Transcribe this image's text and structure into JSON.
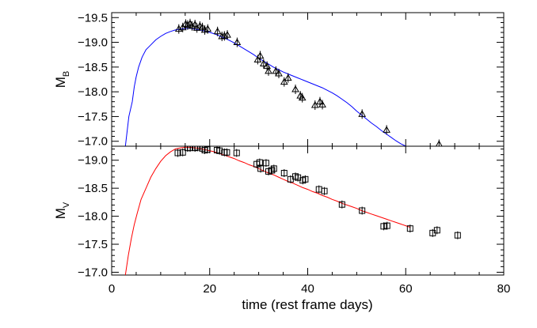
{
  "chart_data": [
    {
      "type": "line",
      "ylabel_main": "M",
      "ylabel_sub": "B",
      "xlim": [
        0,
        80
      ],
      "ylim": [
        -16.9,
        -19.6
      ],
      "y_inverted": true,
      "xticks": [
        0,
        20,
        40,
        60,
        80
      ],
      "yticks": [
        -17.0,
        -17.5,
        -18.0,
        -18.5,
        -19.0,
        -19.5
      ],
      "ytick_labels": [
        "−17.0",
        "−17.5",
        "−18.0",
        "−18.5",
        "−19.0",
        "−19.5"
      ],
      "grid": false,
      "series": [
        {
          "kind": "model-line",
          "color": "#0000ff",
          "x": [
            2.8,
            3.5,
            4.2,
            4.6,
            5.0,
            5.5,
            6.2,
            7.0,
            8.0,
            9.0,
            10.0,
            11.0,
            12.0,
            13.0,
            14.0,
            15.0,
            16.0,
            17.0,
            18.0,
            19.0,
            20.0,
            21.0,
            22.0,
            23.0,
            24.0,
            25.0,
            26.0,
            27.0,
            28.0,
            29.0,
            30.0,
            31.0,
            32.0,
            33.0,
            34.0,
            35.0,
            36.0,
            37.0,
            38.0,
            39.0,
            40.0,
            41.0,
            42.0,
            43.0,
            44.0,
            45.0,
            46.0,
            47.0,
            48.0,
            49.0,
            50.0,
            51.0,
            52.0,
            53.0,
            54.0,
            55.0,
            56.0,
            57.0,
            58.0,
            59.0,
            60.0,
            61.0,
            62.0
          ],
          "y": [
            -16.9,
            -17.5,
            -17.8,
            -18.1,
            -18.3,
            -18.5,
            -18.7,
            -18.85,
            -18.95,
            -19.05,
            -19.12,
            -19.18,
            -19.22,
            -19.25,
            -19.27,
            -19.28,
            -19.28,
            -19.27,
            -19.25,
            -19.23,
            -19.2,
            -19.17,
            -19.13,
            -19.09,
            -19.04,
            -18.99,
            -18.93,
            -18.87,
            -18.81,
            -18.75,
            -18.68,
            -18.62,
            -18.56,
            -18.5,
            -18.45,
            -18.4,
            -18.36,
            -18.32,
            -18.28,
            -18.24,
            -18.2,
            -18.16,
            -18.12,
            -18.08,
            -18.03,
            -17.98,
            -17.92,
            -17.85,
            -17.78,
            -17.7,
            -17.61,
            -17.53,
            -17.45,
            -17.37,
            -17.3,
            -17.22,
            -17.15,
            -17.08,
            -17.01,
            -16.95,
            -16.9,
            -16.87,
            -16.85
          ]
        },
        {
          "kind": "observations",
          "marker": "triangle",
          "x": [
            13.7,
            14.5,
            15.1,
            15.5,
            16.0,
            16.4,
            17.0,
            17.4,
            18.0,
            18.5,
            19.0,
            19.6,
            21.6,
            22.5,
            23.0,
            23.6,
            25.6,
            29.8,
            30.3,
            31.0,
            31.7,
            32.0,
            33.5,
            34.1,
            35.2,
            36.0,
            37.5,
            38.5,
            38.9,
            41.5,
            42.5,
            43.0,
            51.1,
            56.1,
            66.8
          ],
          "y": [
            -19.27,
            -19.3,
            -19.37,
            -19.35,
            -19.38,
            -19.33,
            -19.36,
            -19.29,
            -19.33,
            -19.3,
            -19.25,
            -19.27,
            -19.22,
            -19.12,
            -19.13,
            -19.15,
            -19.0,
            -18.65,
            -18.73,
            -18.57,
            -18.52,
            -18.42,
            -18.42,
            -18.37,
            -18.2,
            -18.28,
            -18.05,
            -17.92,
            -17.88,
            -17.73,
            -17.8,
            -17.74,
            -17.55,
            -17.23,
            -16.94
          ]
        }
      ]
    },
    {
      "type": "line",
      "ylabel_main": "M",
      "ylabel_sub": "V",
      "xlabel": "time (rest frame days)",
      "xlim": [
        0,
        80
      ],
      "ylim": [
        -16.95,
        -19.25
      ],
      "y_inverted": true,
      "xticks": [
        0,
        20,
        40,
        60,
        80
      ],
      "xtick_labels": [
        "0",
        "20",
        "40",
        "60",
        "80"
      ],
      "yticks": [
        -17.0,
        -17.5,
        -18.0,
        -18.5,
        -19.0
      ],
      "ytick_labels": [
        "−17.0",
        "−17.5",
        "−18.0",
        "−18.5",
        "−19.0"
      ],
      "grid": false,
      "series": [
        {
          "kind": "model-line",
          "color": "#ff0000",
          "x": [
            2.8,
            3.4,
            4.0,
            4.6,
            5.2,
            6.0,
            7.0,
            8.0,
            9.0,
            10.0,
            11.0,
            12.0,
            13.0,
            14.0,
            15.0,
            16.0,
            17.0,
            18.0,
            19.0,
            20.0,
            21.0,
            22.0,
            23.0,
            24.0,
            25.0,
            26.0,
            27.0,
            28.0,
            29.0,
            30.0,
            31.0,
            32.0,
            33.0,
            34.0,
            35.0,
            36.0,
            37.0,
            38.0,
            39.0,
            40.0,
            41.0,
            42.0,
            43.0,
            44.0,
            45.0,
            46.0,
            47.0,
            48.0,
            49.0,
            50.0,
            51.0,
            52.0,
            53.0,
            54.0,
            55.0,
            56.0,
            57.0,
            58.0,
            59.0,
            60.0,
            61.0
          ],
          "y": [
            -16.95,
            -17.3,
            -17.6,
            -17.85,
            -18.05,
            -18.3,
            -18.5,
            -18.7,
            -18.85,
            -18.98,
            -19.08,
            -19.15,
            -19.2,
            -19.22,
            -19.23,
            -19.23,
            -19.22,
            -19.21,
            -19.19,
            -19.17,
            -19.15,
            -19.12,
            -19.09,
            -19.06,
            -19.03,
            -18.99,
            -18.96,
            -18.92,
            -18.89,
            -18.85,
            -18.81,
            -18.77,
            -18.74,
            -18.7,
            -18.66,
            -18.62,
            -18.59,
            -18.55,
            -18.51,
            -18.48,
            -18.44,
            -18.41,
            -18.37,
            -18.34,
            -18.3,
            -18.27,
            -18.23,
            -18.2,
            -18.17,
            -18.14,
            -18.1,
            -18.07,
            -18.04,
            -18.01,
            -17.98,
            -17.95,
            -17.92,
            -17.89,
            -17.86,
            -17.83,
            -17.8
          ]
        },
        {
          "kind": "observations",
          "marker": "square",
          "x": [
            13.5,
            14.5,
            15.5,
            16.0,
            17.0,
            17.5,
            18.5,
            19.0,
            19.5,
            21.5,
            22.0,
            23.0,
            23.5,
            25.5,
            29.6,
            30.2,
            30.4,
            31.5,
            32.0,
            32.7,
            33.1,
            35.2,
            36.5,
            37.5,
            38.0,
            39.0,
            39.5,
            42.3,
            43.4,
            47.0,
            51.1,
            55.5,
            56.2,
            60.9,
            65.5,
            66.4,
            70.6
          ],
          "y": [
            -19.13,
            -19.14,
            -19.22,
            -19.22,
            -19.22,
            -19.23,
            -19.21,
            -19.18,
            -19.19,
            -19.18,
            -19.17,
            -19.14,
            -19.14,
            -19.13,
            -18.93,
            -18.96,
            -18.85,
            -18.95,
            -18.8,
            -18.82,
            -18.85,
            -18.77,
            -18.66,
            -18.71,
            -18.69,
            -18.64,
            -18.66,
            -18.48,
            -18.45,
            -18.21,
            -18.1,
            -17.82,
            -17.83,
            -17.78,
            -17.7,
            -17.75,
            -17.66
          ]
        }
      ]
    }
  ]
}
